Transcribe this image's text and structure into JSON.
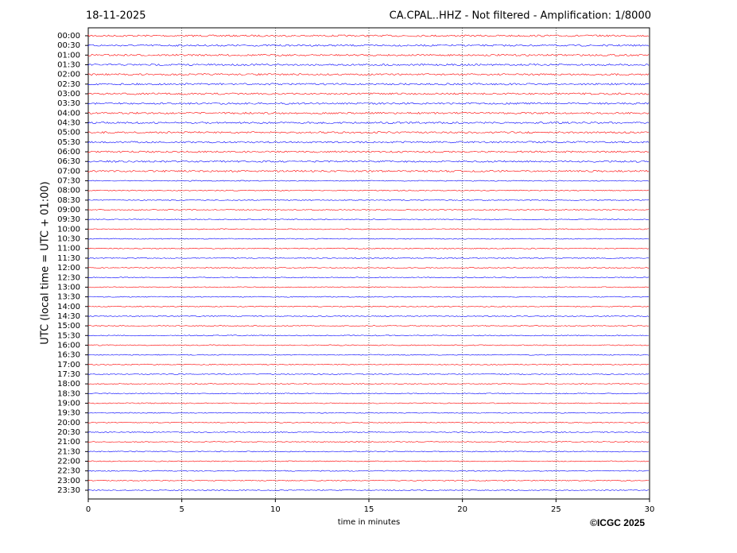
{
  "chart_data": {
    "type": "helicorder",
    "date": "18-11-2025",
    "title": "CA.CPAL..HHZ - Not filtered - Amplification: 1/8000",
    "ylabel": "UTC (local time = UTC + 01:00)",
    "xlabel": "time in minutes",
    "credit": "©ICGC 2025",
    "categories": [
      "00:00",
      "00:30",
      "01:00",
      "01:30",
      "02:00",
      "02:30",
      "03:00",
      "03:30",
      "04:00",
      "04:30",
      "05:00",
      "05:30",
      "06:00",
      "06:30",
      "07:00",
      "07:30",
      "08:00",
      "08:30",
      "09:00",
      "09:30",
      "10:00",
      "10:30",
      "11:00",
      "11:30",
      "12:00",
      "12:30",
      "13:00",
      "13:30",
      "14:00",
      "14:30",
      "15:00",
      "15:30",
      "16:00",
      "16:30",
      "17:00",
      "17:30",
      "18:00",
      "18:30",
      "19:00",
      "19:30",
      "20:00",
      "20:30",
      "21:00",
      "21:30",
      "22:00",
      "22:30",
      "23:00",
      "23:30"
    ],
    "colors": [
      "#ff0000",
      "#0000ff"
    ],
    "xlim": [
      0,
      30
    ],
    "xticks": [
      0,
      5,
      10,
      15,
      20,
      25,
      30
    ],
    "grid": true
  }
}
